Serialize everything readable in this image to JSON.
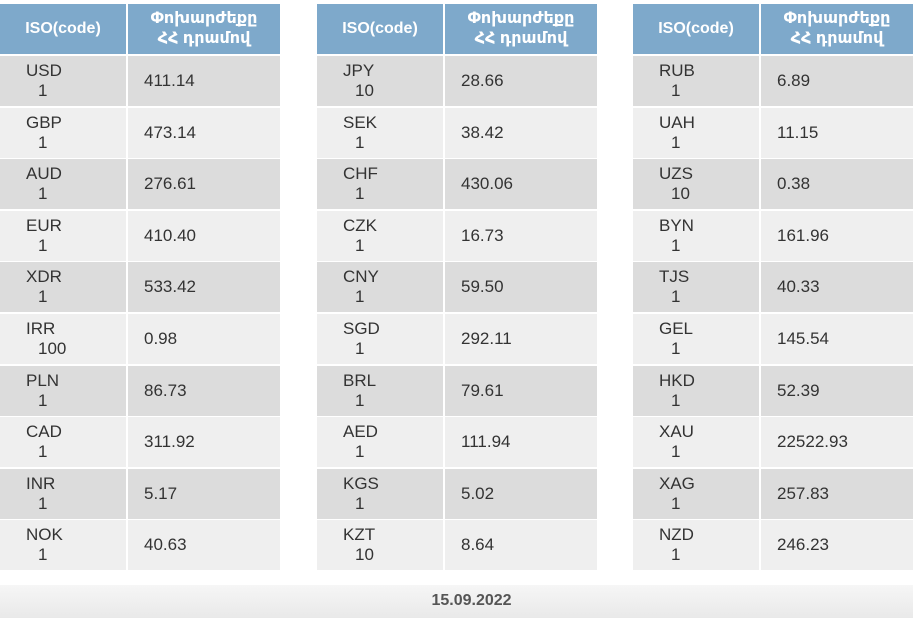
{
  "header": {
    "code_label": "ISO(code)",
    "rate_label_line1": "Փոխարժեքը",
    "rate_label_line2": "ՀՀ դրամով"
  },
  "tables": [
    [
      {
        "iso": "USD",
        "units": "1",
        "rate": "411.14"
      },
      {
        "iso": "GBP",
        "units": "1",
        "rate": "473.14"
      },
      {
        "iso": "AUD",
        "units": "1",
        "rate": "276.61"
      },
      {
        "iso": "EUR",
        "units": "1",
        "rate": "410.40"
      },
      {
        "iso": "XDR",
        "units": "1",
        "rate": "533.42"
      },
      {
        "iso": "IRR",
        "units": "100",
        "rate": "0.98"
      },
      {
        "iso": "PLN",
        "units": "1",
        "rate": "86.73"
      },
      {
        "iso": "CAD",
        "units": "1",
        "rate": "311.92"
      },
      {
        "iso": "INR",
        "units": "1",
        "rate": "5.17"
      },
      {
        "iso": "NOK",
        "units": "1",
        "rate": "40.63"
      }
    ],
    [
      {
        "iso": "JPY",
        "units": "10",
        "rate": "28.66"
      },
      {
        "iso": "SEK",
        "units": "1",
        "rate": "38.42"
      },
      {
        "iso": "CHF",
        "units": "1",
        "rate": "430.06"
      },
      {
        "iso": "CZK",
        "units": "1",
        "rate": "16.73"
      },
      {
        "iso": "CNY",
        "units": "1",
        "rate": "59.50"
      },
      {
        "iso": "SGD",
        "units": "1",
        "rate": "292.11"
      },
      {
        "iso": "BRL",
        "units": "1",
        "rate": "79.61"
      },
      {
        "iso": "AED",
        "units": "1",
        "rate": "111.94"
      },
      {
        "iso": "KGS",
        "units": "1",
        "rate": "5.02"
      },
      {
        "iso": "KZT",
        "units": "10",
        "rate": "8.64"
      }
    ],
    [
      {
        "iso": "RUB",
        "units": "1",
        "rate": "6.89"
      },
      {
        "iso": "UAH",
        "units": "1",
        "rate": "11.15"
      },
      {
        "iso": "UZS",
        "units": "10",
        "rate": "0.38"
      },
      {
        "iso": "BYN",
        "units": "1",
        "rate": "161.96"
      },
      {
        "iso": "TJS",
        "units": "1",
        "rate": "40.33"
      },
      {
        "iso": "GEL",
        "units": "1",
        "rate": "145.54"
      },
      {
        "iso": "HKD",
        "units": "1",
        "rate": "52.39"
      },
      {
        "iso": "XAU",
        "units": "1",
        "rate": "22522.93"
      },
      {
        "iso": "XAG",
        "units": "1",
        "rate": "257.83"
      },
      {
        "iso": "NZD",
        "units": "1",
        "rate": "246.23"
      }
    ]
  ],
  "footer": {
    "date": "15.09.2022"
  },
  "colors": {
    "header_bg": "#7ea9cb",
    "row_dark": "#dcdcdc",
    "row_light": "#efefef"
  }
}
